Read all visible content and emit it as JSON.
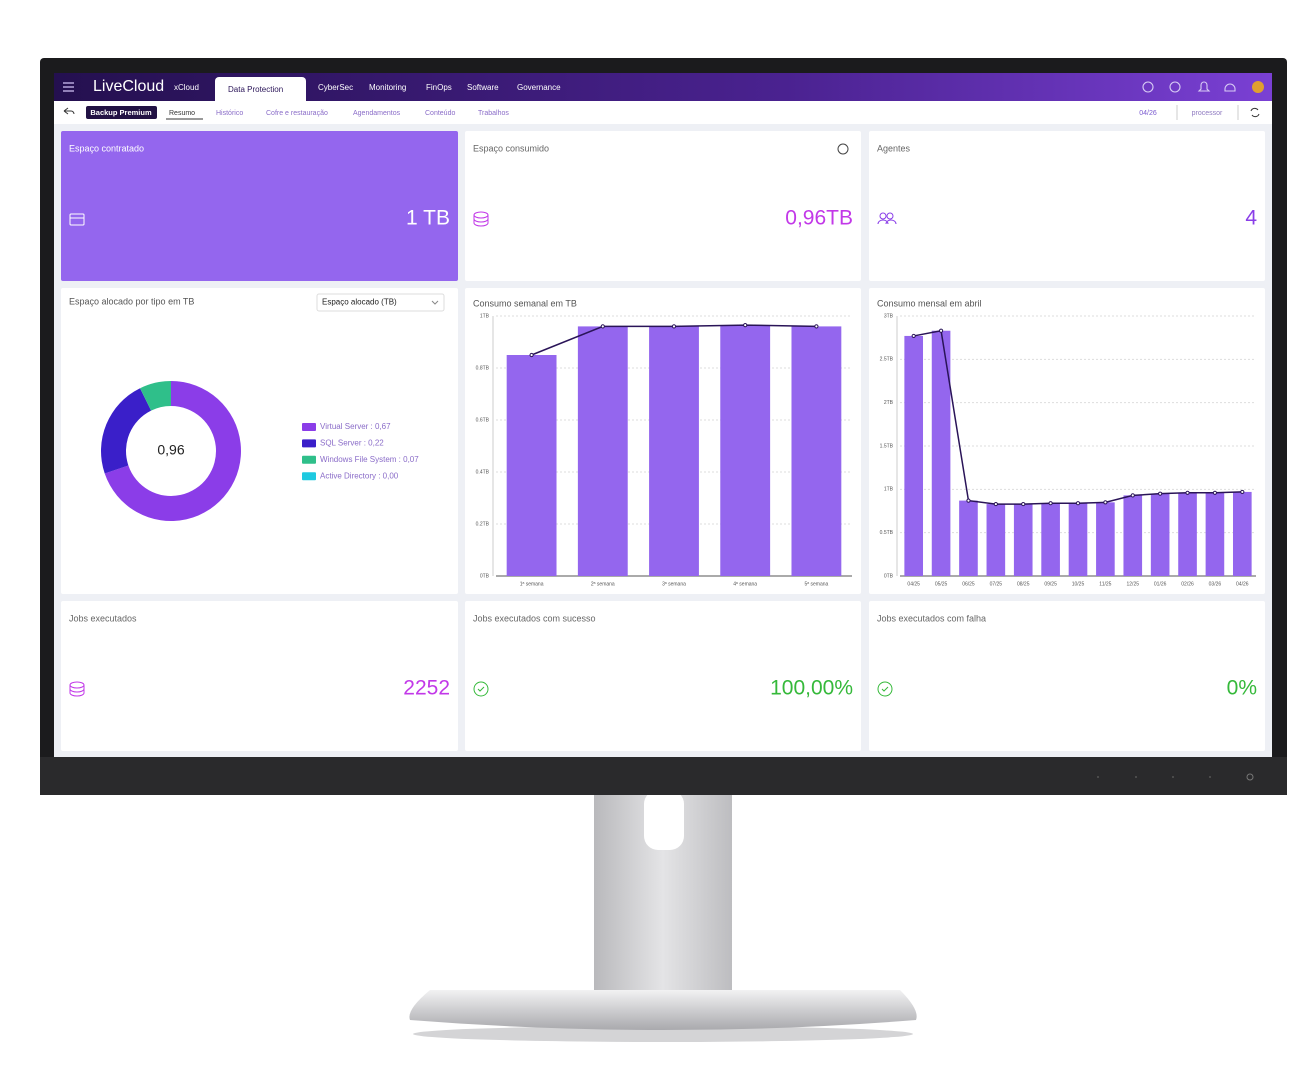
{
  "nav": {
    "brand": "LiveCloud",
    "items": [
      "xCloud",
      "Data Protection",
      "CyberSec",
      "Monitoring",
      "FinOps",
      "Software",
      "Governance"
    ],
    "active": 1
  },
  "subnav": {
    "badge": "Backup Premium",
    "tabs": [
      "Resumo",
      "Histórico",
      "Cofre e restauração",
      "Agendamentos",
      "Conteúdo",
      "Trabalhos"
    ],
    "active": 0,
    "period": "04/26",
    "filter": "processor"
  },
  "cards": [
    {
      "title": "Espaço contratado",
      "value": "1 TB",
      "color": "#ffffff",
      "background": "#9466ee"
    },
    {
      "title": "Espaço consumido",
      "value": "0,96TB",
      "color": "#c238e8",
      "background": "#ffffff"
    },
    {
      "title": "Agentes",
      "value": "4",
      "color": "#8a3ee8",
      "background": "#ffffff"
    },
    {
      "title": "Jobs executados",
      "value": "2252",
      "color": "#c238e8",
      "background": "#ffffff"
    },
    {
      "title": "Jobs executados com sucesso",
      "value": "100,00%",
      "color": "#35b93a",
      "background": "#ffffff"
    },
    {
      "title": "Jobs executados com falha",
      "value": "0%",
      "color": "#35b93a",
      "background": "#ffffff"
    }
  ],
  "charts": [
    {
      "type": "donut",
      "title": "Espaço alocado por tipo em TB",
      "selector": "Espaço alocado (TB)",
      "center_label": "0,96",
      "legend": [
        "Virtual Server : 0,67",
        "SQL Server : 0,22",
        "Windows File System : 0,07",
        "Active Directory : 0,00"
      ],
      "values": [
        0.67,
        0.22,
        0.07,
        0
      ],
      "colors": [
        "#8b3de8",
        "#3a1fc9",
        "#2fbf8a",
        "#1ec9e0"
      ]
    },
    {
      "type": "bar",
      "title": "Consumo semanal em TB",
      "categories": [
        "1ª semana",
        "2ª semana",
        "3ª semana",
        "4ª semana",
        "5ª semana"
      ],
      "values": [
        0.85,
        0.96,
        0.96,
        0.965,
        0.96
      ],
      "color": "#9466ee",
      "line_color": "#2a1458",
      "grid": true,
      "ylim": [
        0,
        1
      ],
      "yticks": [
        {
          "value": 0,
          "label": "0TB"
        },
        {
          "value": 0.2,
          "label": "0.2TB"
        },
        {
          "value": 0.4,
          "label": "0.4TB"
        },
        {
          "value": 0.6,
          "label": "0.6TB"
        },
        {
          "value": 0.8,
          "label": "0.8TB"
        },
        {
          "value": 1,
          "label": "1TB"
        }
      ]
    },
    {
      "type": "bar",
      "title": "Consumo mensal em abril",
      "categories": [
        "04/25",
        "05/25",
        "06/25",
        "07/25",
        "08/25",
        "09/25",
        "10/25",
        "11/25",
        "12/25",
        "01/26",
        "02/26",
        "03/26",
        "04/26"
      ],
      "values": [
        2.77,
        2.83,
        0.87,
        0.83,
        0.83,
        0.84,
        0.84,
        0.85,
        0.93,
        0.95,
        0.96,
        0.96,
        0.97
      ],
      "color": "#9466ee",
      "line_color": "#2a1458",
      "grid": true,
      "ylim": [
        0,
        3
      ],
      "yticks": [
        {
          "value": 0,
          "label": "0TB"
        },
        {
          "value": 0.5,
          "label": "0.5TB"
        },
        {
          "value": 1,
          "label": "1TB"
        },
        {
          "value": 1.5,
          "label": "1.5TB"
        },
        {
          "value": 2,
          "label": "2TB"
        },
        {
          "value": 2.5,
          "label": "2.5TB"
        },
        {
          "value": 3,
          "label": "3TB"
        }
      ]
    }
  ]
}
